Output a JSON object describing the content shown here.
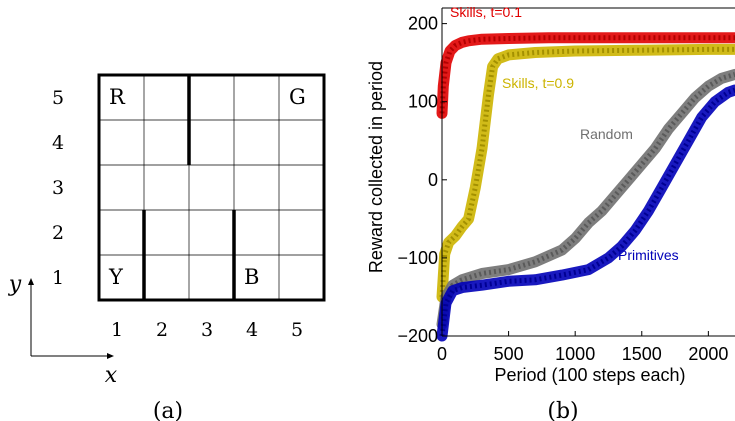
{
  "panel_a": {
    "caption": "(a)",
    "grid_size": 5,
    "row_labels": [
      "5",
      "4",
      "3",
      "2",
      "1"
    ],
    "col_labels": [
      "1",
      "2",
      "3",
      "4",
      "5"
    ],
    "axis_x_label": "x",
    "axis_y_label": "y",
    "landmarks": [
      {
        "label": "R",
        "col": 1,
        "row": 5
      },
      {
        "label": "G",
        "col": 5,
        "row": 5
      },
      {
        "label": "Y",
        "col": 1,
        "row": 1
      },
      {
        "label": "B",
        "col": 4,
        "row": 1
      }
    ],
    "walls": [
      {
        "between_cols": [
          2,
          3
        ],
        "rows": [
          4,
          5
        ]
      },
      {
        "between_cols": [
          1,
          2
        ],
        "rows": [
          1,
          2
        ]
      },
      {
        "between_cols": [
          3,
          4
        ],
        "rows": [
          1,
          2
        ]
      }
    ]
  },
  "chart_data": {
    "type": "line",
    "caption": "(b)",
    "xlabel": "Period (100 steps each)",
    "ylabel": "Reward collected in period",
    "xlim": [
      0,
      2200
    ],
    "ylim": [
      -200,
      220
    ],
    "xticks": [
      0,
      500,
      1000,
      1500,
      2000
    ],
    "xtick_labels": [
      "0",
      "500",
      "1000",
      "1500",
      "2000"
    ],
    "yticks": [
      -200,
      -100,
      0,
      100,
      200
    ],
    "ytick_labels": [
      "−200",
      "−100",
      "0",
      "100",
      "200"
    ],
    "grid": false,
    "legend": "inline labels",
    "series": [
      {
        "name": "Skills, t=0.1",
        "color": "#e00000",
        "x": [
          0,
          10,
          30,
          60,
          100,
          150,
          200,
          300,
          500,
          800,
          1200,
          1600,
          2000,
          2200
        ],
        "y": [
          85,
          120,
          150,
          165,
          172,
          176,
          178,
          180,
          181,
          182,
          182,
          182,
          182,
          182
        ]
      },
      {
        "name": "Skills, t=0.9",
        "color": "#ccb400",
        "x": [
          0,
          20,
          50,
          100,
          150,
          200,
          250,
          300,
          350,
          380,
          420,
          500,
          700,
          1000,
          1500,
          2000,
          2200
        ],
        "y": [
          -150,
          -95,
          -80,
          -72,
          -60,
          -50,
          -10,
          40,
          110,
          145,
          155,
          160,
          163,
          165,
          166,
          167,
          167
        ]
      },
      {
        "name": "Random",
        "color": "#707070",
        "x": [
          0,
          30,
          80,
          150,
          300,
          500,
          700,
          900,
          1000,
          1100,
          1200,
          1300,
          1400,
          1500,
          1600,
          1700,
          1800,
          1900,
          2000,
          2100,
          2200
        ],
        "y": [
          -185,
          -150,
          -135,
          -128,
          -120,
          -115,
          -105,
          -90,
          -75,
          -55,
          -40,
          -20,
          0,
          20,
          40,
          65,
          85,
          105,
          120,
          130,
          135
        ]
      },
      {
        "name": "Primitives",
        "color": "#0000b8",
        "x": [
          0,
          30,
          80,
          150,
          300,
          500,
          700,
          900,
          1100,
          1250,
          1350,
          1450,
          1550,
          1650,
          1750,
          1850,
          1950,
          2050,
          2150,
          2200
        ],
        "y": [
          -200,
          -158,
          -142,
          -138,
          -135,
          -130,
          -128,
          -122,
          -115,
          -100,
          -85,
          -65,
          -40,
          -10,
          20,
          50,
          80,
          100,
          112,
          115
        ]
      }
    ]
  }
}
